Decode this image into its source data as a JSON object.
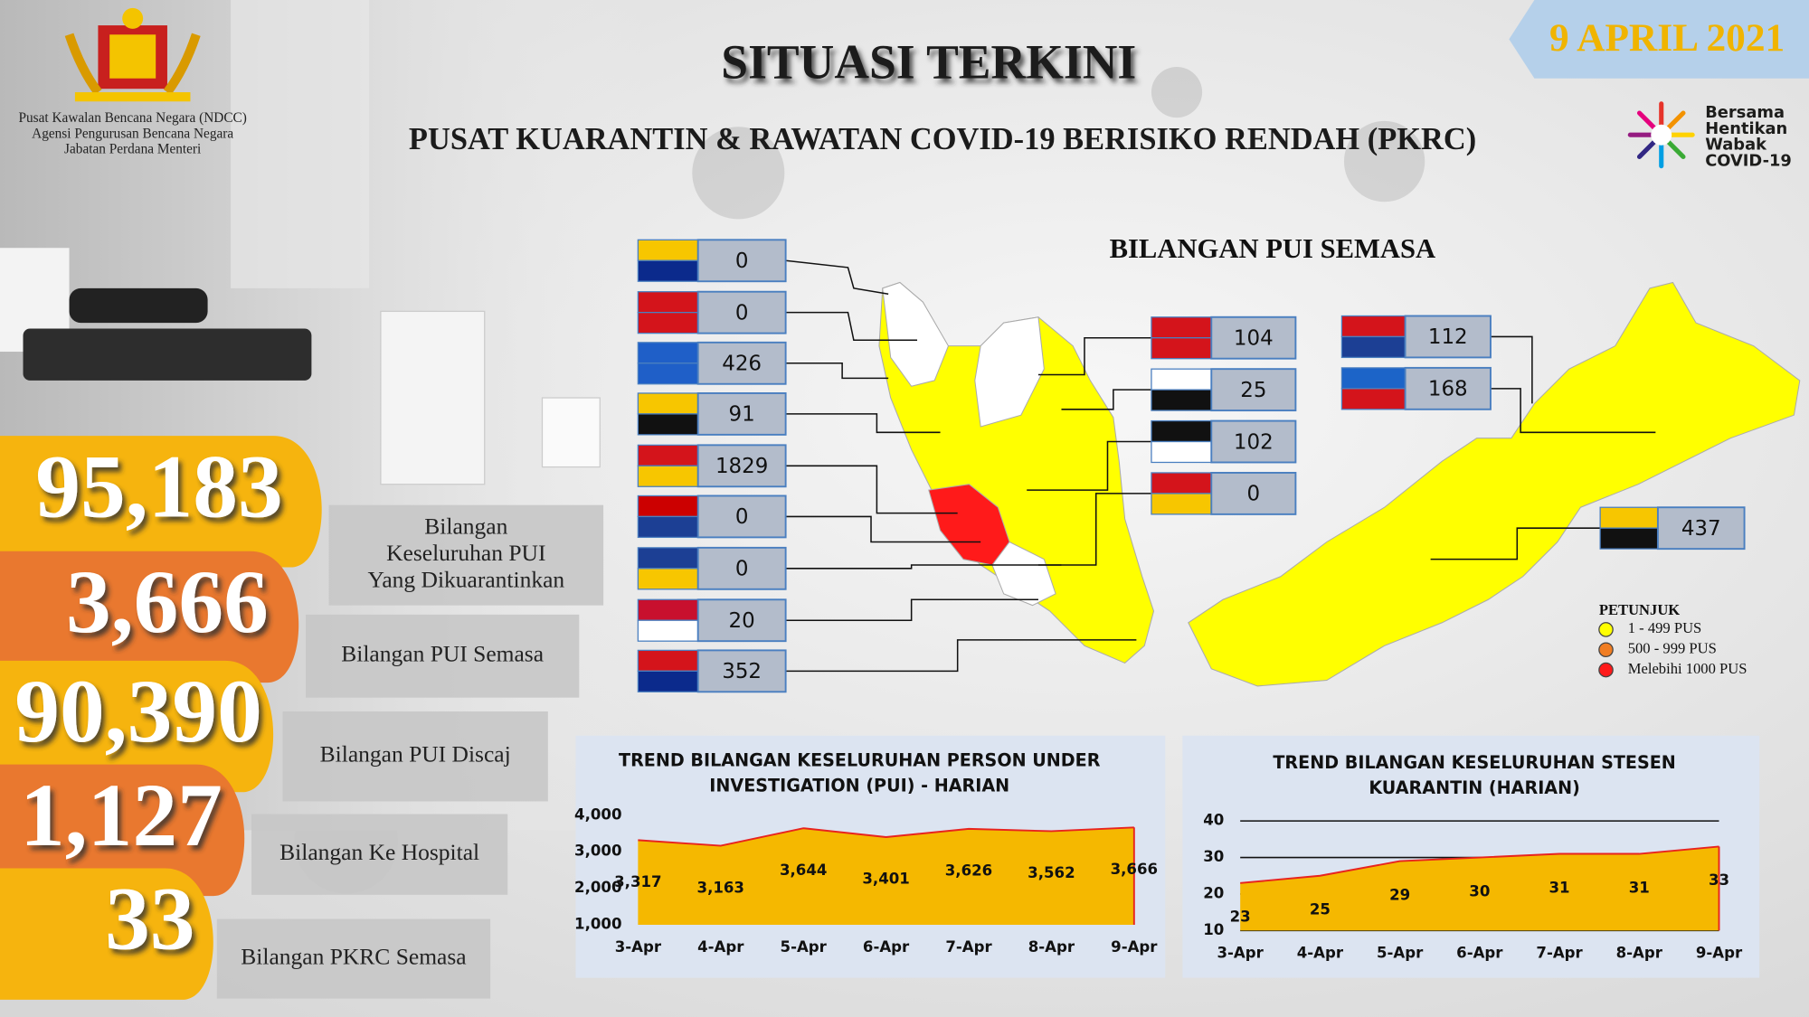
{
  "header": {
    "agency": [
      "Pusat Kawalan Bencana Negara (NDCC)",
      "Agensi Pengurusan Bencana Negara",
      "Jabatan Perdana Menteri"
    ],
    "title": "SITUASI TERKINI",
    "subtitle": "PUSAT KUARANTIN & RAWATAN COVID-19 BERISIKO RENDAH (PKRC)",
    "date": "9 APRIL 2021",
    "campaign": [
      "Bersama",
      "Hentikan",
      "Wabak",
      "COVID-19"
    ]
  },
  "stats": [
    {
      "number": "95,183",
      "label": [
        "Bilangan",
        "Keseluruhan PUI",
        "Yang Dikuarantinkan"
      ]
    },
    {
      "number": "3,666",
      "label": [
        "Bilangan PUI Semasa"
      ]
    },
    {
      "number": "90,390",
      "label": [
        "Bilangan PUI Discaj"
      ]
    },
    {
      "number": "1,127",
      "label": [
        "Bilangan Ke Hospital"
      ]
    },
    {
      "number": "33",
      "label": [
        "Bilangan PKRC Semasa"
      ]
    }
  ],
  "map": {
    "title": "BILANGAN PUI SEMASA",
    "west_states": [
      0,
      0,
      426,
      91,
      1829,
      0,
      0,
      20,
      352
    ],
    "east_coast_states": [
      104,
      25,
      102,
      0
    ],
    "borneo_states": [
      112,
      168,
      437
    ],
    "legend": {
      "title": "PETUNJUK",
      "items": [
        "1 - 499 PUS",
        "500 - 999 PUS",
        "Melebihi 1000 PUS"
      ],
      "colors": [
        "#ffff00",
        "#f07d22",
        "#ff1a1a"
      ]
    }
  },
  "chart_data": [
    {
      "type": "area",
      "title": [
        "TREND BILANGAN KESELURUHAN PERSON UNDER",
        "INVESTIGATION (PUI) - HARIAN"
      ],
      "categories": [
        "3-Apr",
        "4-Apr",
        "5-Apr",
        "6-Apr",
        "7-Apr",
        "8-Apr",
        "9-Apr"
      ],
      "values": [
        3317,
        3163,
        3644,
        3401,
        3626,
        3562,
        3666
      ],
      "value_labels": [
        "3,317",
        "3,163",
        "3,644",
        "3,401",
        "3,626",
        "3,562",
        "3,666"
      ],
      "color": "#f5b800",
      "line_color": "#e8231e",
      "ylim": [
        1000,
        4000
      ],
      "yticks": [
        {
          "value": 1000,
          "label": "1,000"
        },
        {
          "value": 2000,
          "label": "2,000"
        },
        {
          "value": 3000,
          "label": "3,000"
        },
        {
          "value": 4000,
          "label": "4,000"
        }
      ],
      "grid": false
    },
    {
      "type": "area",
      "title": [
        "TREND BILANGAN KESELURUHAN STESEN",
        "KUARANTIN (HARIAN)"
      ],
      "categories": [
        "3-Apr",
        "4-Apr",
        "5-Apr",
        "6-Apr",
        "7-Apr",
        "8-Apr",
        "9-Apr"
      ],
      "values": [
        23,
        25,
        29,
        30,
        31,
        31,
        33
      ],
      "color": "#f5b800",
      "line_color": "#e8231e",
      "ylim": [
        10,
        40
      ],
      "yticks": [
        10,
        20,
        30,
        40
      ],
      "grid": true
    }
  ]
}
